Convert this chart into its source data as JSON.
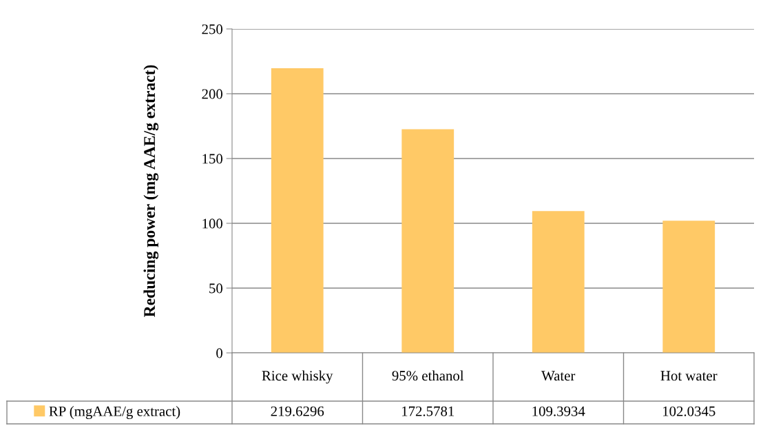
{
  "chart_data": {
    "type": "bar",
    "ylabel": "Reducing power (mg AAE/g extract)",
    "categories": [
      "Rice whisky",
      "95% ethanol",
      "Water",
      "Hot water"
    ],
    "series": [
      {
        "name": "RP (mgAAE/g extract)",
        "color": "#ffc966",
        "values": [
          219.6296,
          172.5781,
          109.3934,
          102.0345
        ]
      }
    ],
    "ylim": [
      0,
      250
    ],
    "yticks": [
      0,
      50,
      100,
      150,
      200,
      250
    ],
    "grid": "y",
    "legend": "bottom",
    "data_labels": true
  }
}
